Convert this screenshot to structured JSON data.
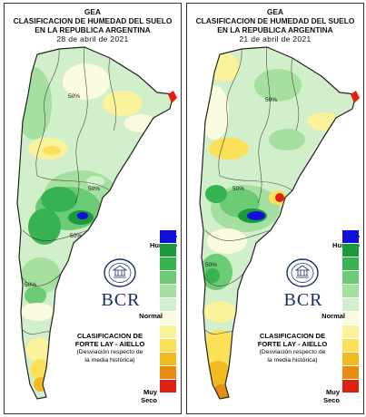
{
  "header": {
    "org": "GEA",
    "title_line1": "CLASIFICACION DE HUMEDAD DEL SUELO",
    "title_line2": "EN LA REPUBLICA ARGENTINA"
  },
  "panels": [
    {
      "date": "28 de abril de 2021"
    },
    {
      "date": "21 de abril de 2021"
    }
  ],
  "legend": {
    "wet_label_line1": "Muy",
    "wet_label_line2": "Humedo",
    "normal_label": "Normal",
    "dry_label_line1": "Muy",
    "dry_label_line2": "Seco",
    "colors": [
      "#1010d8",
      "#1a9a3c",
      "#37b451",
      "#6ccc75",
      "#a6e0a0",
      "#d2efcc",
      "#fbfbe0",
      "#fbf29c",
      "#fbe15a",
      "#f1bb1d",
      "#e88b10",
      "#e02010"
    ]
  },
  "logo": {
    "text": "BCR",
    "seal_text": "BOLSA DE COMERCIO DE ROSARIO"
  },
  "info": {
    "clasif_line1": "CLASIFICACION DE",
    "clasif_line2": "FORTE LAY - AIELLO",
    "desv_line1": "(Desviación respecto de",
    "desv_line2": "la media histórica)"
  },
  "contour_labels": [
    "50%",
    "50%",
    "50%",
    "50%",
    "50%"
  ]
}
